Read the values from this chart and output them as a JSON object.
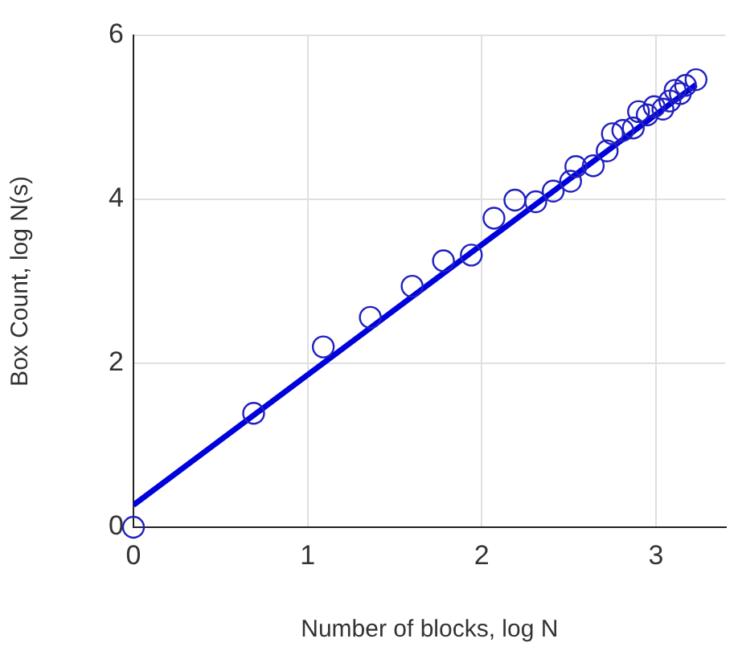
{
  "chart_data": {
    "type": "scatter",
    "xlabel": "Number of blocks, log N",
    "ylabel": "Box Count, log N(s)",
    "xlim": [
      0,
      3.4
    ],
    "xticks": [
      0,
      1,
      2,
      3
    ],
    "ylim": [
      0,
      6
    ],
    "yticks": [
      0,
      2,
      4,
      6
    ],
    "grid": true,
    "legend": false,
    "marker": "circle",
    "series": [
      {
        "color": "#2020c0",
        "x": [
          0,
          0.69,
          1.09,
          1.36,
          1.6,
          1.78,
          1.94,
          2.07,
          2.19,
          2.31,
          2.41,
          2.51,
          2.54,
          2.64,
          2.72,
          2.75,
          2.81,
          2.87,
          2.9,
          2.95,
          2.99,
          3.04,
          3.08,
          3.11,
          3.14,
          3.17,
          3.23
        ],
        "values": [
          0,
          1.39,
          2.2,
          2.56,
          2.94,
          3.25,
          3.32,
          3.77,
          3.99,
          3.97,
          4.1,
          4.22,
          4.4,
          4.41,
          4.59,
          4.8,
          4.84,
          4.87,
          5.07,
          5.03,
          5.13,
          5.1,
          5.2,
          5.33,
          5.29,
          5.39,
          5.46
        ]
      },
      {
        "type": "line",
        "color": "#0000dd",
        "marker": "none",
        "line_style": "solid",
        "x": [
          0,
          3.23
        ],
        "values": [
          0.27,
          5.4
        ]
      }
    ]
  }
}
